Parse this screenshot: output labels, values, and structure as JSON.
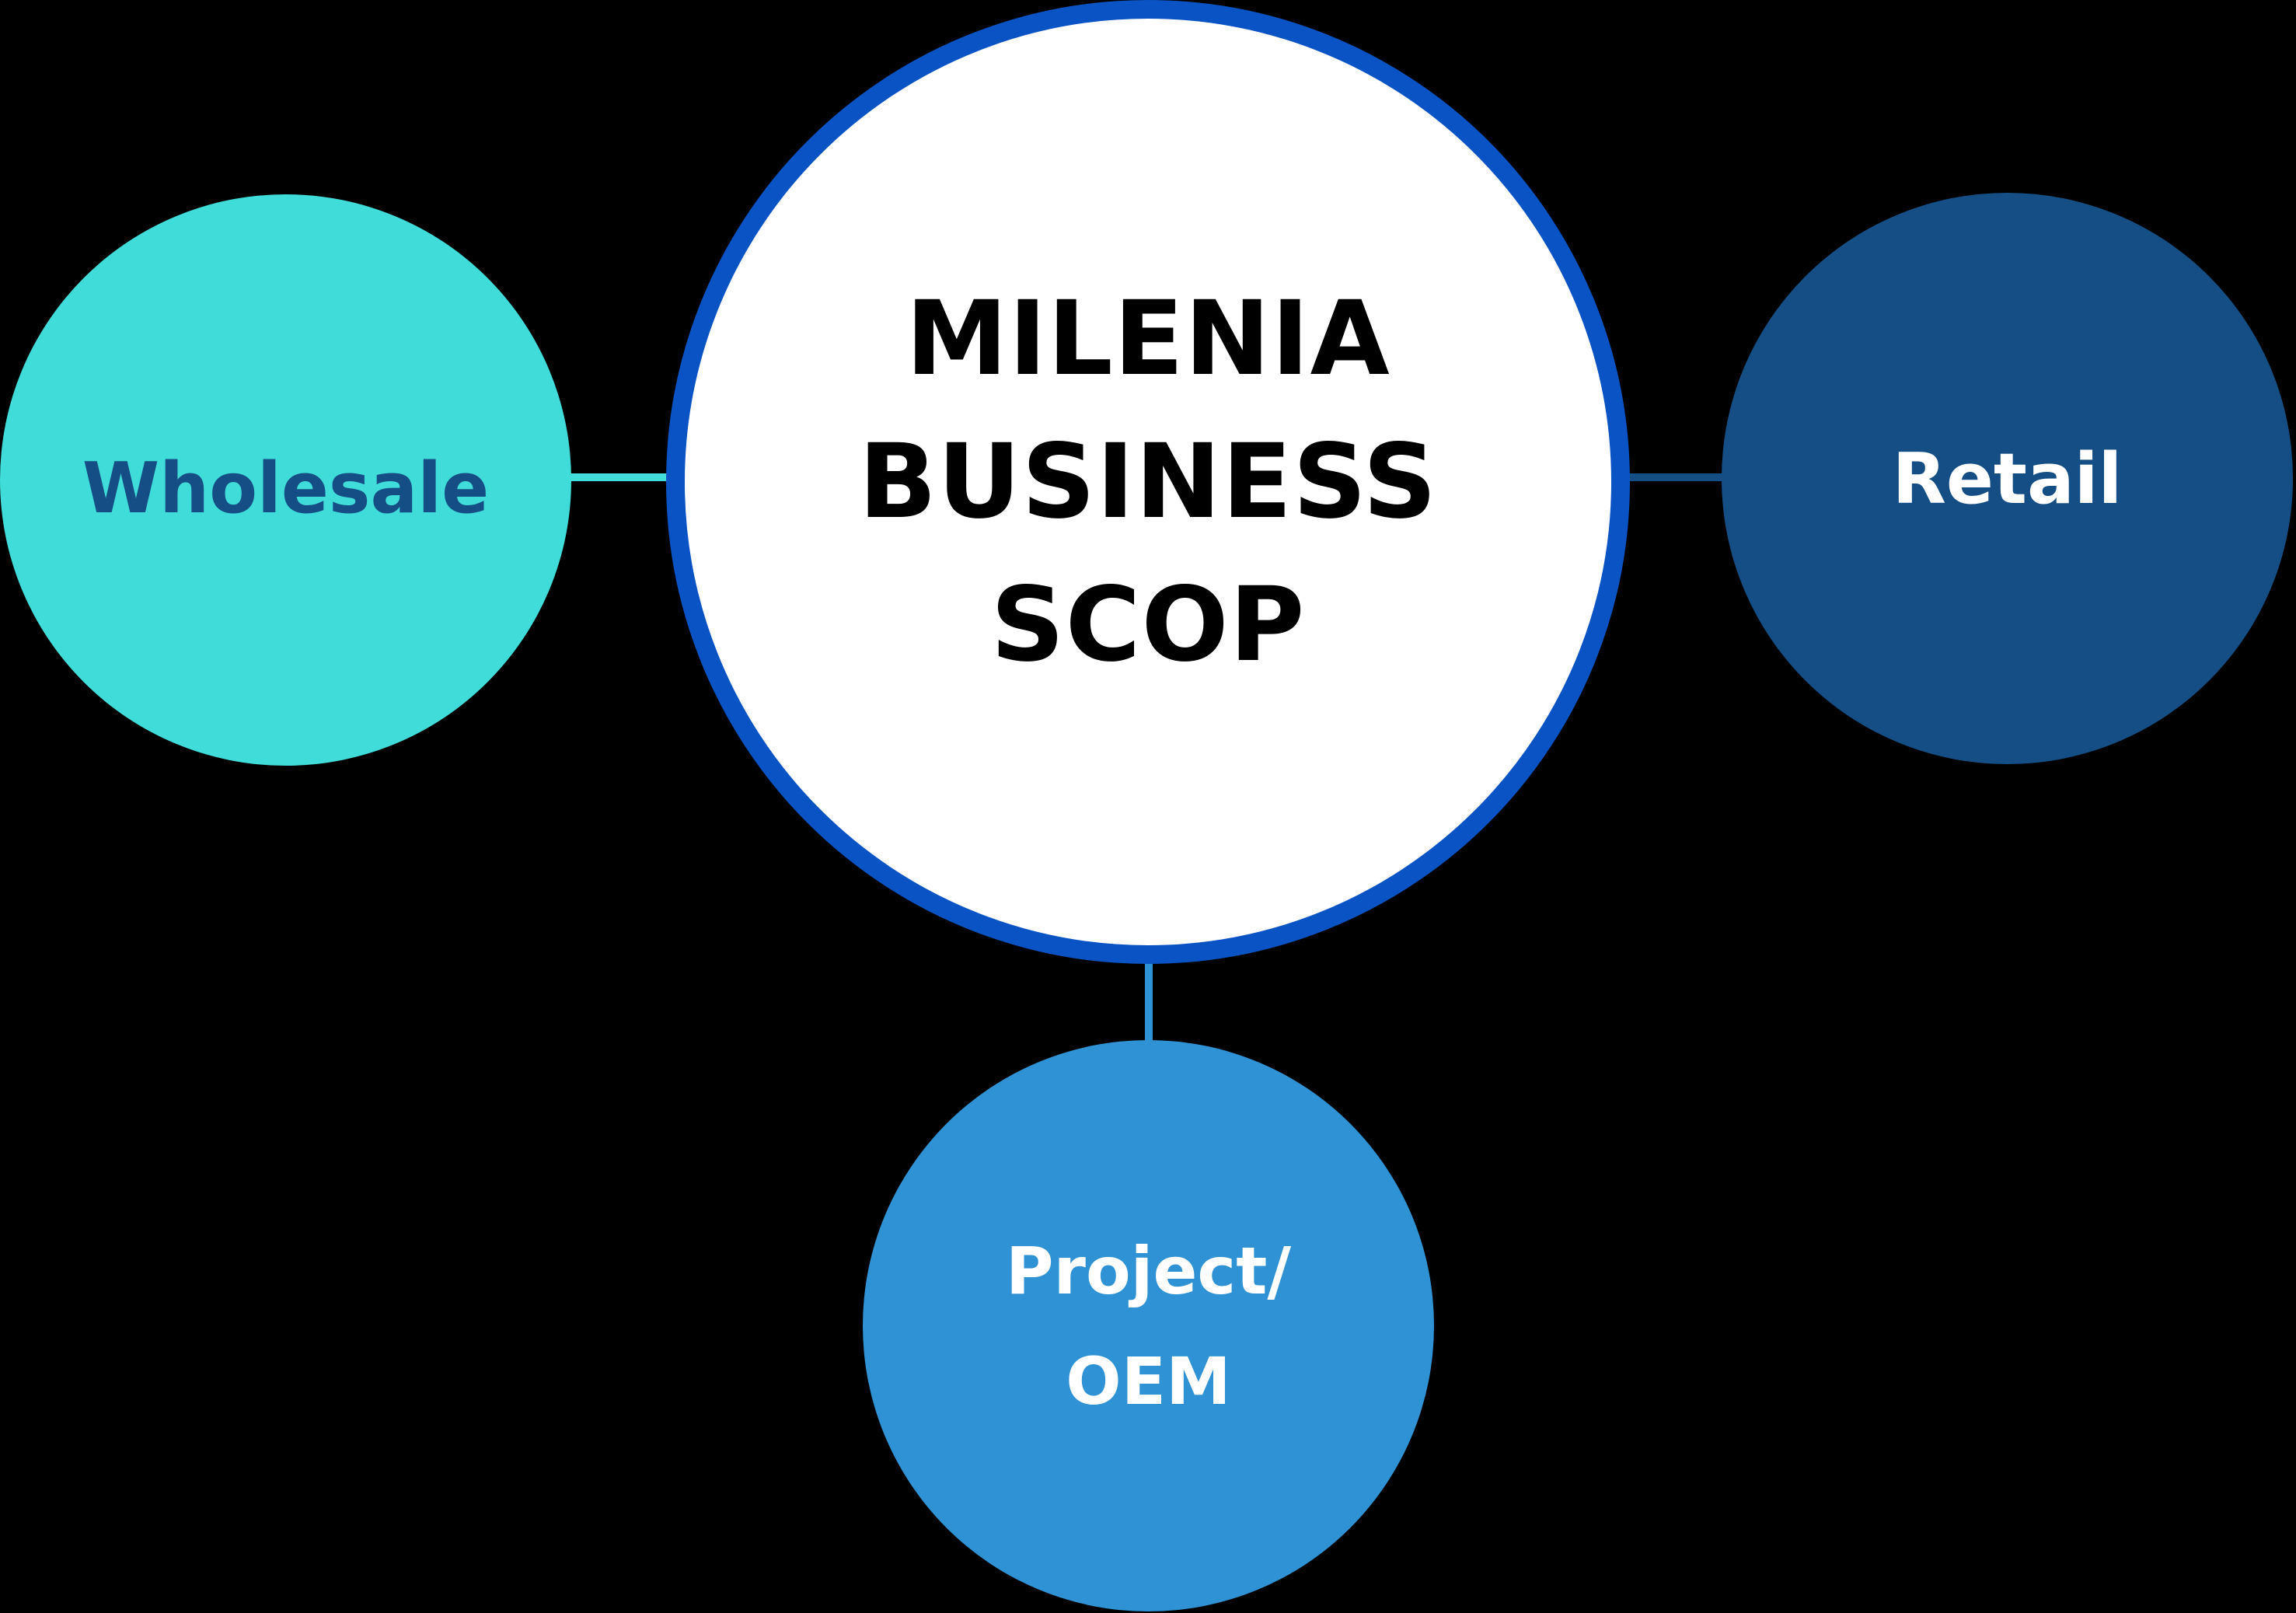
{
  "diagram": {
    "center": {
      "label": "MILENIA\nBUSINESS\nSCOP",
      "fill_color": "#ffffff",
      "border_color": "#0a53c4",
      "text_color": "#000000"
    },
    "nodes": [
      {
        "id": "wholesale",
        "label": "Wholesale",
        "fill_color": "#40dcd9",
        "text_color": "#154e85",
        "connector_color": "#40dcd9"
      },
      {
        "id": "retail",
        "label": "Retail",
        "fill_color": "#154e85",
        "text_color": "#ffffff",
        "connector_color": "#154e85"
      },
      {
        "id": "project-oem",
        "label": "Project/\nOEM",
        "fill_color": "#2e92d4",
        "text_color": "#ffffff",
        "connector_color": "#2e92d4"
      }
    ]
  }
}
